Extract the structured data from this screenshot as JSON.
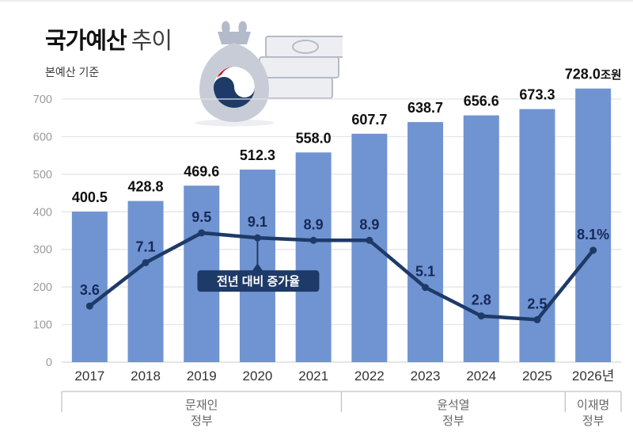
{
  "header": {
    "title_strong": "국가예산",
    "title_light": "추이",
    "subtitle": "본예산 기준"
  },
  "annotation": {
    "label": "전년 대비 증가율"
  },
  "icon": {
    "name": "money-bag-with-government-emblem-and-banknotes"
  },
  "colors": {
    "bar": "#7094d1",
    "line": "#1e3a68",
    "grid": "#e3e3e3",
    "baseline": "#d6d6d6",
    "axis_text": "#9b9b9b",
    "year_text": "#333333",
    "bar_label": "#0f0f0f",
    "growth_label": "#16295a",
    "bracket": "#c3c3c3",
    "gov_text": "#666666",
    "annotation_bg": "#1e3a68",
    "annotation_text": "#ffffff",
    "bag": "#c7ccd7",
    "bag_dark": "#b3bac9",
    "bill_face": "#eceef2",
    "bill_edge": "#b6bbc7",
    "emblem_red": "#c8102e"
  },
  "chart_data": {
    "type": "bar+line",
    "title": "국가예산 추이",
    "subtitle": "본예산 기준",
    "unit": "조원",
    "legend_position": "none",
    "grid": true,
    "categories": [
      "2017",
      "2018",
      "2019",
      "2020",
      "2021",
      "2022",
      "2023",
      "2024",
      "2025",
      "2026년"
    ],
    "y_ticks": [
      0,
      100,
      200,
      300,
      400,
      500,
      600,
      700
    ],
    "ylim": [
      0,
      700
    ],
    "series": [
      {
        "name": "본예산(조원)",
        "type": "bar",
        "values": [
          400.5,
          428.8,
          469.6,
          512.3,
          558.0,
          607.7,
          638.7,
          656.6,
          673.3,
          728.0
        ],
        "labels": [
          "400.5",
          "428.8",
          "469.6",
          "512.3",
          "558.0",
          "607.7",
          "638.7",
          "656.6",
          "673.3",
          "728.0"
        ]
      },
      {
        "name": "전년 대비 증가율(%)",
        "type": "line",
        "values": [
          3.6,
          7.1,
          9.5,
          9.1,
          8.9,
          8.9,
          5.1,
          2.8,
          2.5,
          8.1
        ],
        "labels": [
          "3.6",
          "7.1",
          "9.5",
          "9.1",
          "8.9",
          "8.9",
          "5.1",
          "2.8",
          "2.5",
          "8.1%"
        ]
      }
    ],
    "unit_suffix": {
      "index": 9,
      "text": "조원"
    },
    "annotation_anchor_index": 3,
    "governments": [
      {
        "name": "문재인 정부",
        "lines": [
          "문재인",
          "정부"
        ],
        "start": 0,
        "end": 4
      },
      {
        "name": "윤석열 정부",
        "lines": [
          "윤석열",
          "정부"
        ],
        "start": 5,
        "end": 8
      },
      {
        "name": "이재명 정부",
        "lines": [
          "이재명",
          "정부"
        ],
        "start": 9,
        "end": 9
      }
    ]
  }
}
